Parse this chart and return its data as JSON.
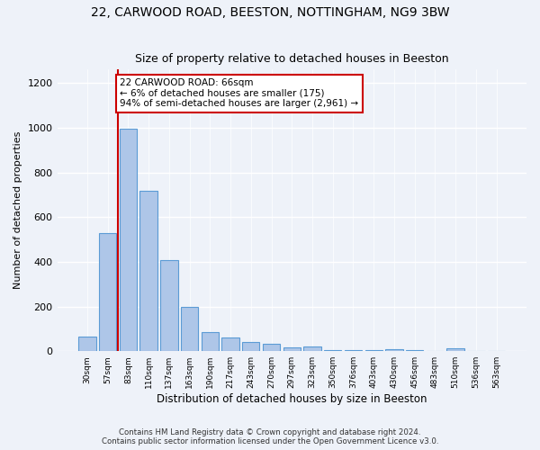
{
  "title1": "22, CARWOOD ROAD, BEESTON, NOTTINGHAM, NG9 3BW",
  "title2": "Size of property relative to detached houses in Beeston",
  "xlabel": "Distribution of detached houses by size in Beeston",
  "ylabel": "Number of detached properties",
  "categories": [
    "30sqm",
    "57sqm",
    "83sqm",
    "110sqm",
    "137sqm",
    "163sqm",
    "190sqm",
    "217sqm",
    "243sqm",
    "270sqm",
    "297sqm",
    "323sqm",
    "350sqm",
    "376sqm",
    "403sqm",
    "430sqm",
    "456sqm",
    "483sqm",
    "510sqm",
    "536sqm",
    "563sqm"
  ],
  "values": [
    65,
    527,
    997,
    717,
    407,
    197,
    87,
    60,
    40,
    32,
    17,
    20,
    5,
    5,
    5,
    10,
    5,
    0,
    12,
    0,
    0
  ],
  "bar_color": "#aec6e8",
  "bar_edgecolor": "#5b9bd5",
  "redline_x": 1.5,
  "annotation_text": "22 CARWOOD ROAD: 66sqm\n← 6% of detached houses are smaller (175)\n94% of semi-detached houses are larger (2,961) →",
  "annotation_box_color": "#ffffff",
  "annotation_border_color": "#cc0000",
  "footer1": "Contains HM Land Registry data © Crown copyright and database right 2024.",
  "footer2": "Contains public sector information licensed under the Open Government Licence v3.0.",
  "ylim": [
    0,
    1260
  ],
  "yticks": [
    0,
    200,
    400,
    600,
    800,
    1000,
    1200
  ],
  "bg_color": "#eef2f9",
  "plot_bg_color": "#eef2f9"
}
